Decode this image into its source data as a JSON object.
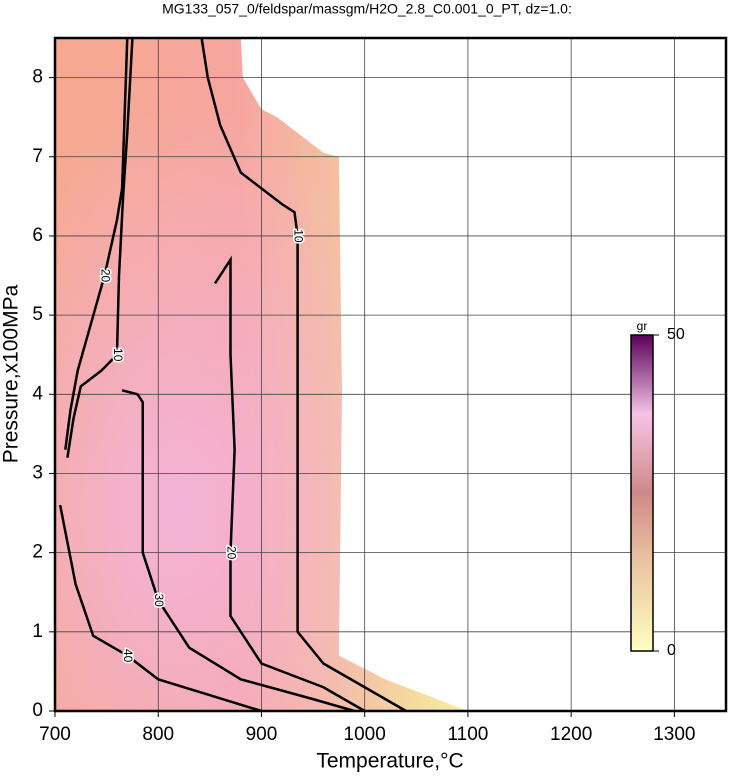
{
  "chart_data": {
    "type": "contour",
    "title": "MG133_057_0/feldspar/massgm/H2O_2.8_C0.001_0_PT, dz=1.0:",
    "x_label": "Temperature,°C",
    "y_label": "Pressure,x100MPa",
    "xlim": [
      700,
      1350
    ],
    "ylim": [
      0,
      8.5
    ],
    "xticks": [
      700,
      800,
      900,
      1000,
      1100,
      1200,
      1300
    ],
    "yticks": [
      0,
      1,
      2,
      3,
      4,
      5,
      6,
      7,
      8
    ],
    "grid": true,
    "domain": {
      "x": [
        700,
        700,
        880,
        882,
        900,
        915,
        960,
        975,
        978,
        975,
        1020,
        1060,
        1100
      ],
      "y": [
        0,
        8.5,
        8.5,
        8.0,
        7.6,
        7.5,
        7.05,
        7.0,
        4.0,
        0.7,
        0.4,
        0.2,
        0
      ]
    },
    "contours": [
      {
        "level": 10,
        "x": [
          712,
          718,
          725,
          745,
          760,
          762,
          766,
          770,
          775
        ],
        "y": [
          3.2,
          3.7,
          4.1,
          4.3,
          4.5,
          5.5,
          6.5,
          7.3,
          8.5
        ]
      },
      {
        "level": 10,
        "x": [
          842,
          848,
          860,
          880,
          920,
          932,
          935,
          935,
          935,
          935,
          960,
          1000,
          1040
        ],
        "y": [
          8.5,
          8.0,
          7.4,
          6.8,
          6.4,
          6.3,
          6.0,
          4.0,
          2.4,
          1.0,
          0.6,
          0.3,
          0
        ]
      },
      {
        "level": 20,
        "x": [
          710,
          715,
          722,
          735,
          748,
          760,
          765,
          770
        ],
        "y": [
          3.3,
          3.8,
          4.3,
          4.9,
          5.5,
          6.2,
          6.6,
          8.5
        ]
      },
      {
        "level": 20,
        "x": [
          855,
          870,
          870,
          874,
          870,
          870,
          900,
          960,
          1000
        ],
        "y": [
          5.4,
          5.7,
          4.5,
          3.3,
          2.0,
          1.2,
          0.6,
          0.3,
          0
        ]
      },
      {
        "level": 30,
        "x": [
          765,
          780,
          785,
          785,
          795,
          800,
          830,
          880,
          950,
          990
        ],
        "y": [
          4.05,
          4.0,
          3.9,
          2.0,
          1.6,
          1.4,
          0.8,
          0.4,
          0.15,
          0
        ]
      },
      {
        "level": 40,
        "x": [
          705,
          720,
          737,
          770,
          800,
          850,
          900
        ],
        "y": [
          2.6,
          1.6,
          0.95,
          0.7,
          0.4,
          0.2,
          0
        ]
      }
    ],
    "colorbar": {
      "label": "gr",
      "lim": [
        0,
        50
      ],
      "ticks": [
        0,
        50
      ]
    }
  }
}
